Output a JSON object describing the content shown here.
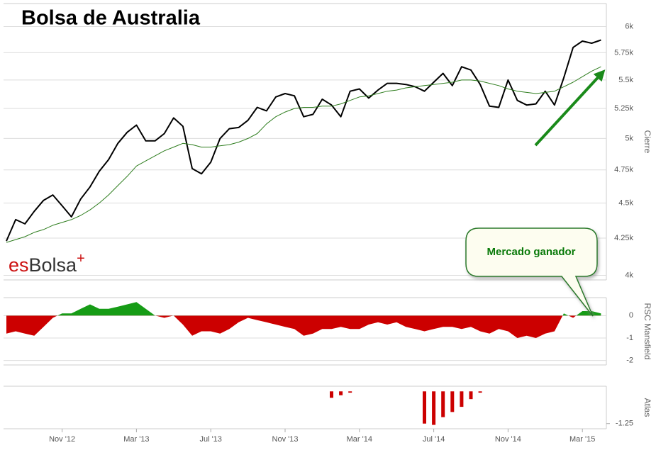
{
  "title": "Bolsa de Australia",
  "logo": {
    "prefix": "es",
    "name": "Bolsa",
    "mark": "+"
  },
  "annotation": "Mercado ganador",
  "chart_data": [
    {
      "type": "line",
      "y_label": "Cierre",
      "log_scale": true,
      "grid": true,
      "ylim": [
        3970,
        6230
      ],
      "yticks": [
        {
          "value": 4000,
          "label": "4k"
        },
        {
          "value": 4250,
          "label": "4.25k"
        },
        {
          "value": 4500,
          "label": "4.5k"
        },
        {
          "value": 4750,
          "label": "4.75k"
        },
        {
          "value": 5000,
          "label": "5k"
        },
        {
          "value": 5250,
          "label": "5.25k"
        },
        {
          "value": 5500,
          "label": "5.5k"
        },
        {
          "value": 5750,
          "label": "5.75k"
        },
        {
          "value": 6000,
          "label": "6k"
        }
      ],
      "series": [
        {
          "color": "#000000",
          "width": 2,
          "values": [
            4230,
            4380,
            4350,
            4440,
            4520,
            4560,
            4480,
            4400,
            4530,
            4620,
            4740,
            4830,
            4960,
            5050,
            5110,
            4980,
            4980,
            5040,
            5170,
            5100,
            4760,
            4720,
            4810,
            5000,
            5080,
            5090,
            5150,
            5260,
            5230,
            5350,
            5380,
            5360,
            5180,
            5200,
            5330,
            5280,
            5180,
            5400,
            5420,
            5340,
            5410,
            5470,
            5470,
            5460,
            5440,
            5400,
            5480,
            5560,
            5450,
            5620,
            5590,
            5460,
            5270,
            5260,
            5500,
            5320,
            5280,
            5290,
            5400,
            5280,
            5520,
            5800,
            5860,
            5840,
            5870
          ]
        },
        {
          "color": "#2e7d1e",
          "width": 1,
          "values": [
            4220,
            4240,
            4260,
            4290,
            4310,
            4340,
            4360,
            4380,
            4410,
            4450,
            4500,
            4560,
            4630,
            4700,
            4780,
            4820,
            4860,
            4900,
            4930,
            4960,
            4950,
            4930,
            4930,
            4940,
            4950,
            4970,
            5000,
            5040,
            5120,
            5180,
            5220,
            5250,
            5260,
            5260,
            5270,
            5270,
            5290,
            5320,
            5350,
            5360,
            5380,
            5400,
            5410,
            5430,
            5440,
            5450,
            5460,
            5470,
            5480,
            5500,
            5500,
            5490,
            5470,
            5450,
            5420,
            5400,
            5390,
            5380,
            5390,
            5400,
            5440,
            5480,
            5530,
            5580,
            5620
          ]
        }
      ]
    },
    {
      "type": "area",
      "y_label": "RSC Mansfield",
      "grid": true,
      "ylim": [
        -2.2,
        0.8
      ],
      "yticks": [
        0,
        -1,
        -2
      ],
      "positive_color": "#169c16",
      "negative_color": "#cc0000",
      "values": [
        -0.8,
        -0.7,
        -0.8,
        -0.9,
        -0.5,
        -0.1,
        0.1,
        0.1,
        0.3,
        0.5,
        0.3,
        0.3,
        0.4,
        0.5,
        0.6,
        0.3,
        0,
        -0.1,
        0,
        -0.4,
        -0.9,
        -0.7,
        -0.7,
        -0.8,
        -0.6,
        -0.3,
        -0.1,
        -0.2,
        -0.3,
        -0.4,
        -0.5,
        -0.6,
        -0.9,
        -0.8,
        -0.6,
        -0.6,
        -0.5,
        -0.6,
        -0.6,
        -0.4,
        -0.3,
        -0.4,
        -0.3,
        -0.5,
        -0.6,
        -0.7,
        -0.6,
        -0.5,
        -0.5,
        -0.6,
        -0.5,
        -0.7,
        -0.8,
        -0.6,
        -0.7,
        -1.0,
        -0.9,
        -1.0,
        -0.8,
        -0.7,
        0.1,
        -0.1,
        0.2,
        0.2,
        0.1
      ]
    },
    {
      "type": "bar",
      "y_label": "Atlas",
      "grid": false,
      "ylim": [
        -1.45,
        0.2
      ],
      "yticks": [
        -1.25
      ],
      "color": "#cc0000",
      "categories": [
        null,
        null,
        null,
        null,
        null,
        null,
        "Nov '12",
        null,
        null,
        null,
        null,
        null,
        null,
        null,
        "Mar '13",
        null,
        null,
        null,
        null,
        null,
        null,
        null,
        "Jul '13",
        null,
        null,
        null,
        null,
        null,
        null,
        null,
        "Nov '13",
        null,
        null,
        null,
        null,
        null,
        null,
        null,
        "Mar '14",
        null,
        null,
        null,
        null,
        null,
        null,
        null,
        "Jul '14",
        null,
        null,
        null,
        null,
        null,
        null,
        null,
        "Nov '14",
        null,
        null,
        null,
        null,
        null,
        null,
        null,
        "Mar '15",
        null,
        null
      ],
      "values": [
        null,
        null,
        null,
        null,
        null,
        null,
        null,
        null,
        null,
        null,
        null,
        null,
        null,
        null,
        null,
        null,
        null,
        null,
        null,
        null,
        null,
        null,
        null,
        null,
        null,
        null,
        null,
        null,
        null,
        null,
        null,
        null,
        null,
        null,
        null,
        -0.25,
        -0.15,
        -0.05,
        null,
        null,
        null,
        null,
        null,
        null,
        null,
        -1.25,
        -1.3,
        -1.0,
        -0.8,
        -0.6,
        -0.3,
        -0.05,
        null,
        null,
        null,
        null,
        null,
        null,
        null,
        null,
        null,
        null,
        null,
        null,
        null
      ]
    }
  ]
}
